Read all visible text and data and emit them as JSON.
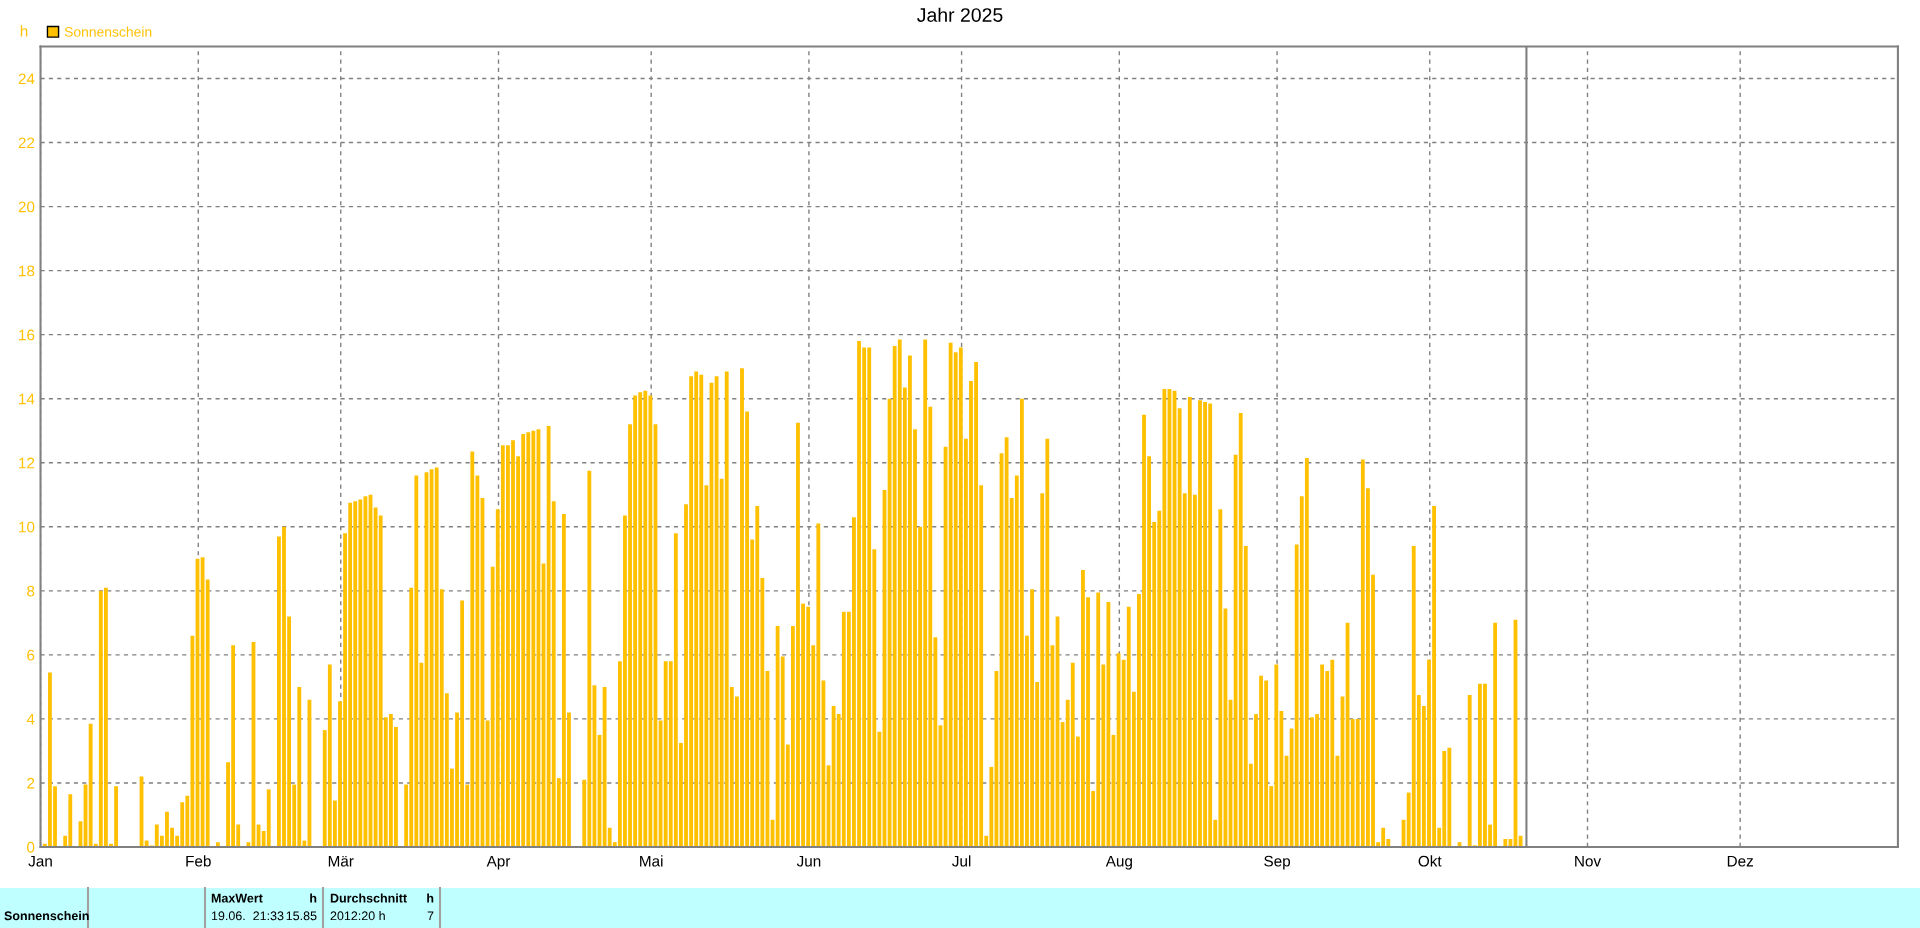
{
  "chart_data": {
    "type": "bar",
    "title": "Jahr 2025",
    "ylabel": "h",
    "legend": "top left",
    "grid": true,
    "x": [
      "2025-01-01",
      "2025-01-02",
      "2025-01-03",
      "2025-01-04",
      "2025-01-05",
      "2025-01-06",
      "2025-01-07",
      "2025-01-08",
      "2025-01-09",
      "2025-01-10",
      "2025-01-11",
      "2025-01-12",
      "2025-01-13",
      "2025-01-14",
      "2025-01-15",
      "2025-01-16",
      "2025-01-17",
      "2025-01-18",
      "2025-01-19",
      "2025-01-20",
      "2025-01-21",
      "2025-01-22",
      "2025-01-23",
      "2025-01-24",
      "2025-01-25",
      "2025-01-26",
      "2025-01-27",
      "2025-01-28",
      "2025-01-29",
      "2025-01-30",
      "2025-01-31",
      "2025-02-01",
      "2025-02-02",
      "2025-02-03",
      "2025-02-04",
      "2025-02-05",
      "2025-02-06",
      "2025-02-07",
      "2025-02-08",
      "2025-02-09",
      "2025-02-10",
      "2025-02-11",
      "2025-02-12",
      "2025-02-13",
      "2025-02-14",
      "2025-02-15",
      "2025-02-16",
      "2025-02-17",
      "2025-02-18",
      "2025-02-19",
      "2025-02-20",
      "2025-02-21",
      "2025-02-22",
      "2025-02-23",
      "2025-02-24",
      "2025-02-25",
      "2025-02-26",
      "2025-02-27",
      "2025-02-28",
      "2025-03-01",
      "2025-03-02",
      "2025-03-03",
      "2025-03-04",
      "2025-03-05",
      "2025-03-06",
      "2025-03-07",
      "2025-03-08",
      "2025-03-09",
      "2025-03-10",
      "2025-03-11",
      "2025-03-12",
      "2025-03-13",
      "2025-03-14",
      "2025-03-15",
      "2025-03-16",
      "2025-03-17",
      "2025-03-18",
      "2025-03-19",
      "2025-03-20",
      "2025-03-21",
      "2025-03-22",
      "2025-03-23",
      "2025-03-24",
      "2025-03-25",
      "2025-03-26",
      "2025-03-27",
      "2025-03-28",
      "2025-03-29",
      "2025-03-30",
      "2025-03-31",
      "2025-04-01",
      "2025-04-02",
      "2025-04-03",
      "2025-04-04",
      "2025-04-05",
      "2025-04-06",
      "2025-04-07",
      "2025-04-08",
      "2025-04-09",
      "2025-04-10",
      "2025-04-11",
      "2025-04-12",
      "2025-04-13",
      "2025-04-14",
      "2025-04-15",
      "2025-04-16",
      "2025-04-17",
      "2025-04-18",
      "2025-04-19",
      "2025-04-20",
      "2025-04-21",
      "2025-04-22",
      "2025-04-23",
      "2025-04-24",
      "2025-04-25",
      "2025-04-26",
      "2025-04-27",
      "2025-04-28",
      "2025-04-29",
      "2025-04-30",
      "2025-05-01",
      "2025-05-02",
      "2025-05-03",
      "2025-05-04",
      "2025-05-05",
      "2025-05-06",
      "2025-05-07",
      "2025-05-08",
      "2025-05-09",
      "2025-05-10",
      "2025-05-11",
      "2025-05-12",
      "2025-05-13",
      "2025-05-14",
      "2025-05-15",
      "2025-05-16",
      "2025-05-17",
      "2025-05-18",
      "2025-05-19",
      "2025-05-20",
      "2025-05-21",
      "2025-05-22",
      "2025-05-23",
      "2025-05-24",
      "2025-05-25",
      "2025-05-26",
      "2025-05-27",
      "2025-05-28",
      "2025-05-29",
      "2025-05-30",
      "2025-05-31",
      "2025-06-01",
      "2025-06-02",
      "2025-06-03",
      "2025-06-04",
      "2025-06-05",
      "2025-06-06",
      "2025-06-07",
      "2025-06-08",
      "2025-06-09",
      "2025-06-10",
      "2025-06-11",
      "2025-06-12",
      "2025-06-13",
      "2025-06-14",
      "2025-06-15",
      "2025-06-16",
      "2025-06-17",
      "2025-06-18",
      "2025-06-19",
      "2025-06-20",
      "2025-06-21",
      "2025-06-22",
      "2025-06-23",
      "2025-06-24",
      "2025-06-25",
      "2025-06-26",
      "2025-06-27",
      "2025-06-28",
      "2025-06-29",
      "2025-06-30",
      "2025-07-01",
      "2025-07-02",
      "2025-07-03",
      "2025-07-04",
      "2025-07-05",
      "2025-07-06",
      "2025-07-07",
      "2025-07-08",
      "2025-07-09",
      "2025-07-10",
      "2025-07-11",
      "2025-07-12",
      "2025-07-13",
      "2025-07-14",
      "2025-07-15",
      "2025-07-16",
      "2025-07-17",
      "2025-07-18",
      "2025-07-19",
      "2025-07-20",
      "2025-07-21",
      "2025-07-22",
      "2025-07-23",
      "2025-07-24",
      "2025-07-25",
      "2025-07-26",
      "2025-07-27",
      "2025-07-28",
      "2025-07-29",
      "2025-07-30",
      "2025-07-31",
      "2025-08-01",
      "2025-08-02",
      "2025-08-03",
      "2025-08-04",
      "2025-08-05",
      "2025-08-06",
      "2025-08-07",
      "2025-08-08",
      "2025-08-09",
      "2025-08-10",
      "2025-08-11",
      "2025-08-12",
      "2025-08-13",
      "2025-08-14",
      "2025-08-15",
      "2025-08-16",
      "2025-08-17",
      "2025-08-18",
      "2025-08-19",
      "2025-08-20",
      "2025-08-21",
      "2025-08-22",
      "2025-08-23",
      "2025-08-24",
      "2025-08-25",
      "2025-08-26",
      "2025-08-27",
      "2025-08-28",
      "2025-08-29",
      "2025-08-30",
      "2025-08-31",
      "2025-09-01",
      "2025-09-02",
      "2025-09-03",
      "2025-09-04",
      "2025-09-05",
      "2025-09-06",
      "2025-09-07",
      "2025-09-08",
      "2025-09-09",
      "2025-09-10",
      "2025-09-11",
      "2025-09-12",
      "2025-09-13",
      "2025-09-14",
      "2025-09-15",
      "2025-09-16",
      "2025-09-17",
      "2025-09-18",
      "2025-09-19",
      "2025-09-20",
      "2025-09-21",
      "2025-09-22",
      "2025-09-23",
      "2025-09-24",
      "2025-09-25",
      "2025-09-26",
      "2025-09-27",
      "2025-09-28",
      "2025-09-29",
      "2025-09-30",
      "2025-10-01",
      "2025-10-02",
      "2025-10-03",
      "2025-10-04",
      "2025-10-05",
      "2025-10-06",
      "2025-10-07",
      "2025-10-08",
      "2025-10-09",
      "2025-10-10",
      "2025-10-11",
      "2025-10-12",
      "2025-10-13",
      "2025-10-14",
      "2025-10-15",
      "2025-10-16",
      "2025-10-17",
      "2025-10-18"
    ],
    "series": [
      {
        "name": "Sonnenschein",
        "color": "#ffc000",
        "values": [
          0.1,
          5.45,
          1.9,
          0,
          0.35,
          1.65,
          0,
          0.8,
          1.95,
          3.85,
          0.1,
          8.0,
          8.1,
          0.1,
          1.9,
          0,
          0,
          0,
          0,
          2.2,
          0.2,
          0.05,
          0.7,
          0.35,
          1.1,
          0.6,
          0.35,
          1.4,
          1.6,
          6.6,
          9.0,
          9.05,
          8.35,
          0,
          0.15,
          0,
          2.65,
          6.3,
          0.7,
          0,
          0.15,
          6.4,
          0.7,
          0.5,
          1.8,
          0,
          9.7,
          10.0,
          7.2,
          1.95,
          5.0,
          0.2,
          4.6,
          0,
          0,
          3.65,
          5.7,
          1.45,
          4.55,
          9.8,
          10.75,
          10.8,
          10.85,
          10.95,
          11.0,
          10.6,
          10.35,
          4.05,
          4.15,
          3.75,
          0,
          1.95,
          8.1,
          11.6,
          5.75,
          11.7,
          11.8,
          11.85,
          8.05,
          4.8,
          2.45,
          4.2,
          7.7,
          1.95,
          12.35,
          11.6,
          10.9,
          3.95,
          8.75,
          10.55,
          12.55,
          12.55,
          12.7,
          12.2,
          12.9,
          12.95,
          13.0,
          13.05,
          8.85,
          13.15,
          10.8,
          2.15,
          10.4,
          4.2,
          0,
          0,
          2.1,
          11.75,
          5.05,
          3.5,
          5.0,
          0.6,
          0.15,
          5.8,
          10.35,
          13.2,
          14.1,
          14.2,
          14.25,
          14.1,
          13.2,
          3.95,
          5.8,
          5.8,
          9.8,
          3.25,
          10.7,
          14.7,
          14.85,
          14.75,
          11.3,
          14.5,
          14.7,
          11.5,
          14.85,
          5.0,
          4.7,
          14.95,
          13.6,
          9.6,
          10.65,
          8.4,
          5.5,
          0.85,
          6.9,
          5.95,
          3.2,
          6.9,
          13.25,
          7.6,
          7.5,
          6.3,
          10.1,
          5.2,
          2.55,
          4.4,
          4.15,
          7.35,
          7.35,
          10.3,
          15.8,
          15.6,
          15.6,
          9.3,
          3.6,
          11.15,
          14.0,
          15.65,
          15.85,
          14.35,
          15.35,
          13.05,
          10.0,
          15.85,
          13.75,
          6.55,
          3.8,
          12.5,
          15.75,
          15.45,
          15.6,
          12.75,
          14.55,
          15.15,
          11.3,
          0.35,
          2.5,
          5.5,
          12.3,
          12.8,
          10.9,
          11.6,
          14.0,
          6.6,
          8.05,
          5.15,
          11.05,
          12.75,
          6.3,
          7.2,
          3.9,
          4.6,
          5.75,
          3.45,
          8.65,
          7.8,
          1.75,
          7.95,
          5.7,
          7.65,
          3.5,
          6.05,
          5.85,
          7.5,
          4.85,
          7.9,
          13.5,
          12.2,
          10.15,
          10.5,
          14.3,
          14.3,
          14.25,
          13.7,
          11.05,
          14.05,
          11.0,
          13.95,
          13.9,
          13.85,
          0.85,
          10.55,
          7.45,
          4.6,
          12.25,
          13.55,
          9.4,
          2.6,
          4.15,
          5.35,
          5.2,
          1.9,
          5.7,
          4.25,
          2.85,
          3.7,
          9.45,
          10.95,
          12.15,
          4.05,
          4.15,
          5.7,
          5.5,
          5.85,
          2.85,
          4.7,
          7.0,
          4.0,
          4.0,
          12.1,
          11.2,
          8.5,
          0.15,
          0.6,
          0.25,
          0,
          0,
          0.85,
          1.7,
          9.4,
          4.75,
          4.4,
          5.85,
          10.65,
          0.6,
          3.0,
          3.1,
          0,
          0.15,
          0,
          4.75,
          0.05,
          5.1,
          5.1,
          0.7,
          7.0,
          0,
          0.25,
          0.25,
          7.1,
          0.35
        ]
      }
    ],
    "xlim": [
      "2025-01-01",
      "2026-01-01"
    ],
    "xticks": [
      {
        "value": "2025-01-01",
        "label": "Jan"
      },
      {
        "value": "2025-02-01",
        "label": "Feb"
      },
      {
        "value": "2025-03-01",
        "label": "Mär"
      },
      {
        "value": "2025-04-01",
        "label": "Apr"
      },
      {
        "value": "2025-05-01",
        "label": "Mai"
      },
      {
        "value": "2025-06-01",
        "label": "Jun"
      },
      {
        "value": "2025-07-01",
        "label": "Jul"
      },
      {
        "value": "2025-08-01",
        "label": "Aug"
      },
      {
        "value": "2025-09-01",
        "label": "Sep"
      },
      {
        "value": "2025-10-01",
        "label": "Okt"
      },
      {
        "value": "2025-11-01",
        "label": "Nov"
      },
      {
        "value": "2025-12-01",
        "label": "Dez"
      }
    ],
    "ylim": [
      0,
      25
    ],
    "yticks": [
      0,
      2,
      4,
      6,
      8,
      10,
      12,
      14,
      16,
      18,
      20,
      22,
      24
    ],
    "ref_lines": [
      {
        "axis": "x",
        "value": "2025-10-20",
        "color": "#808080",
        "line_style": "solid"
      }
    ],
    "annotations": [
      "Sonnenschein",
      "MaxWert",
      "h",
      "19.06.  21:33",
      "15.85",
      "Durchschnitt",
      "h",
      "2012:20 h",
      "7"
    ]
  }
}
